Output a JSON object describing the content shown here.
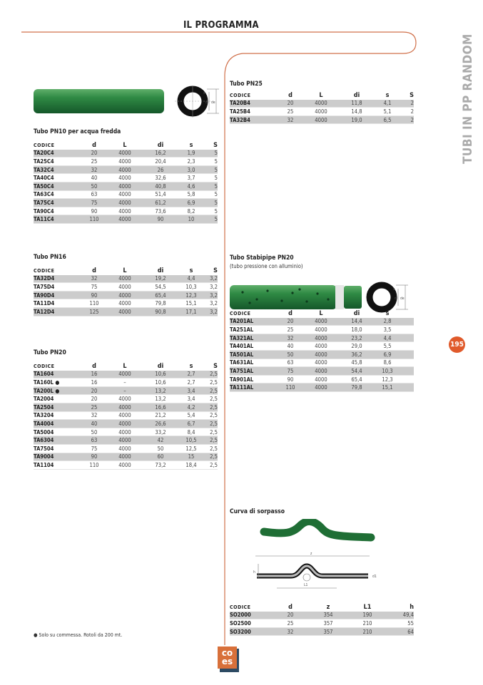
{
  "header": {
    "title": "IL PROGRAMMA",
    "side_label": "TUBI IN PP RANDOM",
    "page_number": "195",
    "accent": "#e05a2b"
  },
  "sections": {
    "pn10": {
      "title": "Tubo PN10 per acqua fredda",
      "columns": [
        "CODICE",
        "d",
        "L",
        "di",
        "s",
        "S"
      ],
      "rows": [
        [
          "TA20C4",
          "20",
          "4000",
          "16,2",
          "1,9",
          "5"
        ],
        [
          "TA25C4",
          "25",
          "4000",
          "20,4",
          "2,3",
          "5"
        ],
        [
          "TA32C4",
          "32",
          "4000",
          "26",
          "3,0",
          "5"
        ],
        [
          "TA40C4",
          "40",
          "4000",
          "32,6",
          "3,7",
          "5"
        ],
        [
          "TA50C4",
          "50",
          "4000",
          "40,8",
          "4,6",
          "5"
        ],
        [
          "TA63C4",
          "63",
          "4000",
          "51,4",
          "5,8",
          "5"
        ],
        [
          "TA75C4",
          "75",
          "4000",
          "61,2",
          "6,9",
          "5"
        ],
        [
          "TA90C4",
          "90",
          "4000",
          "73,6",
          "8,2",
          "5"
        ],
        [
          "TA11C4",
          "110",
          "4000",
          "90",
          "10",
          "5"
        ]
      ]
    },
    "pn16": {
      "title": "Tubo PN16",
      "columns": [
        "CODICE",
        "d",
        "L",
        "di",
        "s",
        "S"
      ],
      "rows": [
        [
          "TA32D4",
          "32",
          "4000",
          "19,2",
          "4,4",
          "3,2"
        ],
        [
          "TA75D4",
          "75",
          "4000",
          "54,5",
          "10,3",
          "3,2"
        ],
        [
          "TA90D4",
          "90",
          "4000",
          "65,4",
          "12,3",
          "3,2"
        ],
        [
          "TA11D4",
          "110",
          "4000",
          "79,8",
          "15,1",
          "3,2"
        ],
        [
          "TA12D4",
          "125",
          "4000",
          "90,8",
          "17,1",
          "3,2"
        ]
      ]
    },
    "pn20": {
      "title": "Tubo PN20",
      "columns": [
        "CODICE",
        "d",
        "L",
        "di",
        "s",
        "S"
      ],
      "rows": [
        [
          "TA1604",
          "16",
          "4000",
          "10,6",
          "2,7",
          "2,5"
        ],
        [
          "TA160L ●",
          "16",
          "–",
          "10,6",
          "2,7",
          "2,5"
        ],
        [
          "TA200L ●",
          "20",
          "–",
          "13,2",
          "3,4",
          "2,5"
        ],
        [
          "TA2004",
          "20",
          "4000",
          "13,2",
          "3,4",
          "2,5"
        ],
        [
          "TA2504",
          "25",
          "4000",
          "16,6",
          "4,2",
          "2,5"
        ],
        [
          "TA3204",
          "32",
          "4000",
          "21,2",
          "5,4",
          "2,5"
        ],
        [
          "TA4004",
          "40",
          "4000",
          "26,6",
          "6,7",
          "2,5"
        ],
        [
          "TA5004",
          "50",
          "4000",
          "33,2",
          "8,4",
          "2,5"
        ],
        [
          "TA6304",
          "63",
          "4000",
          "42",
          "10,5",
          "2,5"
        ],
        [
          "TA7504",
          "75",
          "4000",
          "50",
          "12,5",
          "2,5"
        ],
        [
          "TA9004",
          "90",
          "4000",
          "60",
          "15",
          "2,5"
        ],
        [
          "TA1104",
          "110",
          "4000",
          "73,2",
          "18,4",
          "2,5"
        ]
      ]
    },
    "pn25": {
      "title": "Tubo PN25",
      "columns": [
        "CODICE",
        "d",
        "L",
        "di",
        "s",
        "S"
      ],
      "rows": [
        [
          "TA20B4",
          "20",
          "4000",
          "11,8",
          "4,1",
          "2"
        ],
        [
          "TA25B4",
          "25",
          "4000",
          "14,8",
          "5,1",
          "2"
        ],
        [
          "TA32B4",
          "32",
          "4000",
          "19,0",
          "6,5",
          "2"
        ]
      ]
    },
    "stabi": {
      "title": "Tubo Stabipipe PN20",
      "subtitle": "(tubo pressione con alluminio)",
      "columns": [
        "CODICE",
        "d",
        "L",
        "di",
        "s",
        ""
      ],
      "rows": [
        [
          "TA201AL",
          "20",
          "4000",
          "14,4",
          "2,8",
          ""
        ],
        [
          "TA251AL",
          "25",
          "4000",
          "18,0",
          "3,5",
          ""
        ],
        [
          "TA321AL",
          "32",
          "4000",
          "23,2",
          "4,4",
          ""
        ],
        [
          "TA401AL",
          "40",
          "4000",
          "29,0",
          "5,5",
          ""
        ],
        [
          "TA501AL",
          "50",
          "4000",
          "36,2",
          "6,9",
          ""
        ],
        [
          "TA631AL",
          "63",
          "4000",
          "45,8",
          "8,6",
          ""
        ],
        [
          "TA751AL",
          "75",
          "4000",
          "54,4",
          "10,3",
          ""
        ],
        [
          "TA901AL",
          "90",
          "4000",
          "65,4",
          "12,3",
          ""
        ],
        [
          "TA111AL",
          "110",
          "4000",
          "79,8",
          "15,1",
          ""
        ]
      ]
    },
    "curva": {
      "title": "Curva di sorpasso",
      "columns": [
        "CODICE",
        "d",
        "z",
        "L1",
        "h"
      ],
      "rows": [
        [
          "SO2000",
          "20",
          "354",
          "190",
          "49,4"
        ],
        [
          "SO2500",
          "25",
          "357",
          "210",
          "55"
        ],
        [
          "SO3200",
          "32",
          "357",
          "210",
          "64"
        ]
      ]
    }
  },
  "diagram_labels": {
    "s": "s",
    "di": "di",
    "de": "de",
    "z": "z",
    "h": "h",
    "L1": "L1",
    "d1": "d1"
  },
  "footnote": "● Solo su commessa. Rotoli da 200 mt.",
  "logo": {
    "text_top": "co",
    "text_bottom": "es"
  }
}
